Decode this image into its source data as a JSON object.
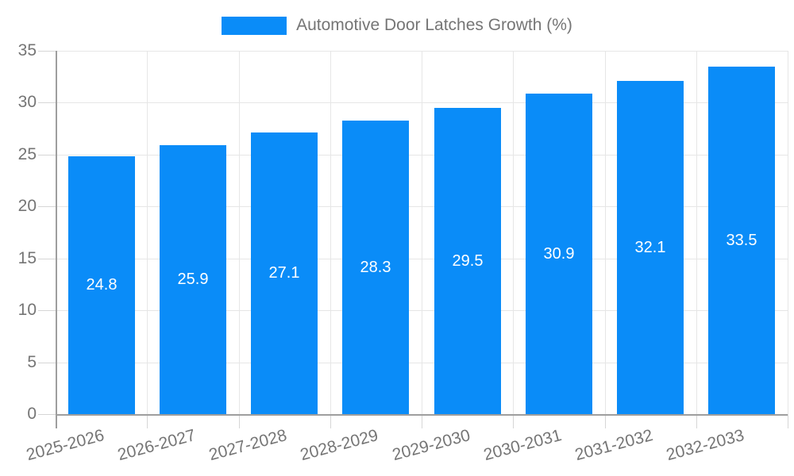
{
  "legend": {
    "series_label": "Automotive Door Latches Growth (%)"
  },
  "chart_data": {
    "type": "bar",
    "title": "",
    "series_name": "Automotive Door Latches Growth (%)",
    "categories": [
      "2025-2026",
      "2026-2027",
      "2027-2028",
      "2028-2029",
      "2029-2030",
      "2030-2031",
      "2031-2032",
      "2032-2033"
    ],
    "values": [
      24.8,
      25.9,
      27.1,
      28.3,
      29.5,
      30.9,
      32.1,
      33.5
    ],
    "value_labels": [
      "24.8",
      "25.9",
      "27.1",
      "28.3",
      "29.5",
      "30.9",
      "32.1",
      "33.5"
    ],
    "xlabel": "",
    "ylabel": "",
    "ylim": [
      0,
      35
    ],
    "yticks": [
      0,
      5,
      10,
      15,
      20,
      25,
      30,
      35
    ],
    "grid": true,
    "legend_position": "top-center",
    "value_label_position": "center-of-bar",
    "x_label_rotation_deg": -15
  },
  "colors": {
    "bar": "#0A8CF8",
    "bar_value_label": "#FFFFFF",
    "axis_label": "#757575",
    "legend_text": "#757575",
    "gridline": "#E6E6E6",
    "tick": "#D6D6D6",
    "axis_line": "#9E9E9E",
    "background": "#FFFFFF"
  }
}
